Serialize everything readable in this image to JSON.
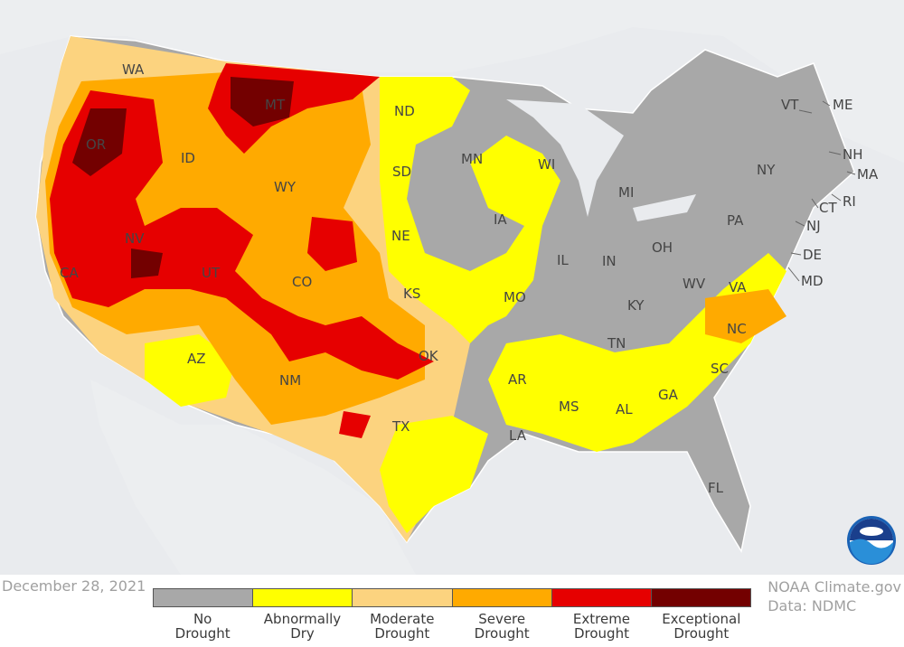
{
  "date": "December 28, 2021",
  "credit": {
    "line1": "NOAA Climate.gov",
    "line2": "Data: NDMC"
  },
  "legend": [
    {
      "line1": "No",
      "line2": "Drought",
      "color": "#a8a8a8"
    },
    {
      "line1": "Abnormally",
      "line2": "Dry",
      "color": "#ffff00"
    },
    {
      "line1": "Moderate",
      "line2": "Drought",
      "color": "#fcd37f"
    },
    {
      "line1": "Severe",
      "line2": "Drought",
      "color": "#ffaa00"
    },
    {
      "line1": "Extreme",
      "line2": "Drought",
      "color": "#e60000"
    },
    {
      "line1": "Exceptional",
      "line2": "Drought",
      "color": "#730000"
    }
  ],
  "states": [
    "WA",
    "OR",
    "CA",
    "ID",
    "NV",
    "MT",
    "WY",
    "UT",
    "AZ",
    "CO",
    "NM",
    "ND",
    "SD",
    "NE",
    "KS",
    "OK",
    "TX",
    "MN",
    "IA",
    "MO",
    "AR",
    "LA",
    "WI",
    "IL",
    "MI",
    "IN",
    "OH",
    "KY",
    "TN",
    "MS",
    "AL",
    "GA",
    "FL",
    "SC",
    "NC",
    "VA",
    "WV",
    "PA",
    "NY",
    "VT",
    "ME",
    "NH",
    "MA",
    "RI",
    "CT",
    "NJ",
    "DE",
    "MD"
  ],
  "logo": "noaa-logo"
}
